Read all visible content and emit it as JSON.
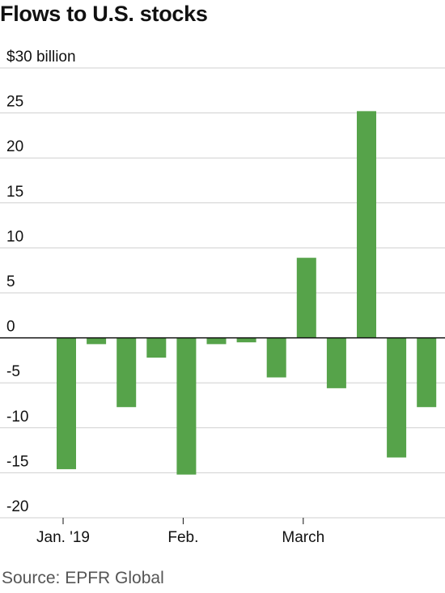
{
  "title": "Flows to U.S. stocks",
  "source": "Source: EPFR Global",
  "colors": {
    "bar": "#56a34a",
    "grid": "#cfcfcf",
    "zero": "#111111"
  },
  "chart_data": {
    "type": "bar",
    "title": "Flows to U.S. stocks",
    "ylabel": "",
    "ylim": [
      -20,
      30
    ],
    "yticks": [
      30,
      25,
      20,
      15,
      10,
      5,
      0,
      -5,
      -10,
      -15,
      -20
    ],
    "ytick_labels": [
      "$30 billion",
      "25",
      "20",
      "15",
      "10",
      "5",
      "0",
      "-5",
      "-10",
      "-15",
      "-20"
    ],
    "x_tick_labels": [
      "Jan. '19",
      "Feb.",
      "March"
    ],
    "x_tick_positions": [
      0,
      4,
      8
    ],
    "values": [
      -14.6,
      -0.7,
      -7.7,
      -2.2,
      -15.2,
      -0.7,
      -0.5,
      -4.4,
      8.9,
      -5.6,
      25.2,
      -13.3,
      -7.7
    ],
    "grid": true
  }
}
